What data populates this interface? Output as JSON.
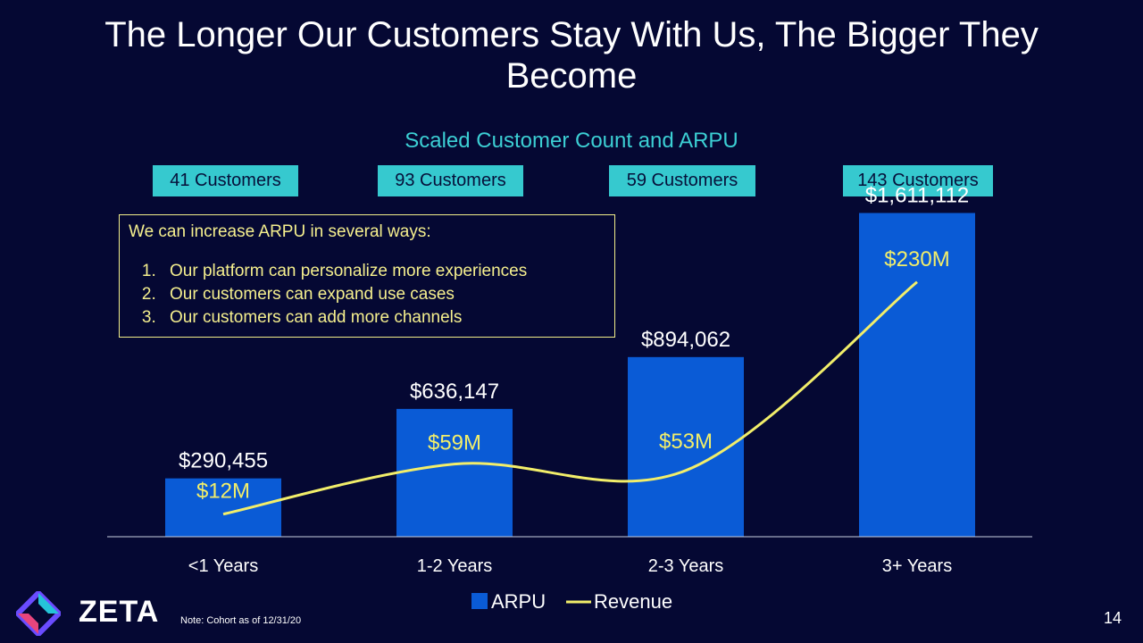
{
  "slide": {
    "title": "The Longer Our Customers Stay With Us, The Bigger They Become",
    "subtitle": "Scaled Customer Count and ARPU",
    "note": "Note:  Cohort as of 12/31/20",
    "page_number": "14",
    "logo_text": "ZETA"
  },
  "badges": [
    "41 Customers",
    "93 Customers",
    "59 Customers",
    "143 Customers"
  ],
  "callout": {
    "lead": "We can increase ARPU in several ways:",
    "items": [
      "Our platform can personalize more experiences",
      "Our customers can expand use cases",
      "Our customers can add more channels"
    ]
  },
  "chart_data": {
    "type": "bar",
    "title": "Scaled Customer Count and ARPU",
    "categories": [
      "<1 Years",
      "1-2 Years",
      "2-3 Years",
      "3+ Years"
    ],
    "series": [
      {
        "name": "ARPU",
        "type": "bar",
        "values": [
          290455,
          636147,
          894062,
          1611112
        ],
        "labels": [
          "$290,455",
          "$636,147",
          "$894,062",
          "$1,611,112"
        ],
        "color": "#0a5bd6"
      },
      {
        "name": "Revenue",
        "type": "line",
        "values": [
          12,
          59,
          53,
          230
        ],
        "labels": [
          "$12M",
          "$59M",
          "$53M",
          "$230M"
        ],
        "unit": "$M",
        "color": "#f2ee6a"
      }
    ],
    "ylim": [
      0,
      1800000
    ],
    "legend": "bottom-center",
    "colors": {
      "label_white": "#ffffff",
      "label_yellow": "#f2ee6a",
      "axis": "#c9cfe0"
    }
  }
}
